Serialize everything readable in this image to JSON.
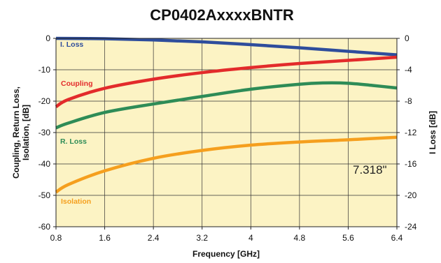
{
  "chart_data": {
    "type": "line",
    "title": "CP0402AxxxxBNTR",
    "xlabel": "Frequency [GHz]",
    "ylabel_left": [
      "Coupling, Return Loss,",
      "Isolation, [dB]"
    ],
    "ylabel_right": "I Loss [dB]",
    "xlim": [
      0.8,
      6.4
    ],
    "ylim_left": [
      -60,
      0
    ],
    "ylim_right": [
      -24,
      0
    ],
    "x_ticks": [
      "0.8",
      "1.6",
      "2.4",
      "3.2",
      "4",
      "4.8",
      "5.6",
      "6.4"
    ],
    "y_ticks_left": [
      "0",
      "-10",
      "-20",
      "-30",
      "-40",
      "-50",
      "-60"
    ],
    "y_ticks_right": [
      "0",
      "-4",
      "-8",
      "-12",
      "-16",
      "-20",
      "-24"
    ],
    "grid": true,
    "background_color": "#fcf3c4",
    "annotation": "7.318\"",
    "series": [
      {
        "name": "I. Loss",
        "axis": "right",
        "color": "#2e4d9c",
        "x": [
          0.8,
          1.6,
          2.4,
          3.2,
          4.0,
          4.8,
          5.6,
          6.4
        ],
        "y": [
          0,
          -0.05,
          -0.2,
          -0.45,
          -0.8,
          -1.2,
          -1.65,
          -2.1
        ]
      },
      {
        "name": "Coupling",
        "axis": "left",
        "color": "#e32b2b",
        "x": [
          0.8,
          1.0,
          1.6,
          2.4,
          3.2,
          4.0,
          4.8,
          5.6,
          6.4
        ],
        "y": [
          -21.8,
          -19.5,
          -15.9,
          -13.0,
          -10.9,
          -9.3,
          -8.0,
          -7.0,
          -6.0
        ]
      },
      {
        "name": "R. Loss",
        "axis": "left",
        "color": "#2e8c57",
        "x": [
          0.8,
          1.0,
          1.6,
          2.4,
          3.2,
          4.0,
          4.8,
          5.2,
          5.6,
          6.0,
          6.4
        ],
        "y": [
          -28.5,
          -27.0,
          -23.6,
          -20.9,
          -18.5,
          -16.2,
          -14.6,
          -14.2,
          -14.3,
          -15.0,
          -15.8
        ]
      },
      {
        "name": "Isolation",
        "axis": "left",
        "color": "#f59f1e",
        "x": [
          0.8,
          1.0,
          1.6,
          2.4,
          3.2,
          4.0,
          4.8,
          5.6,
          6.4
        ],
        "y": [
          -49.0,
          -46.6,
          -42.2,
          -38.2,
          -35.7,
          -34.0,
          -33.0,
          -32.3,
          -31.5
        ]
      }
    ]
  }
}
